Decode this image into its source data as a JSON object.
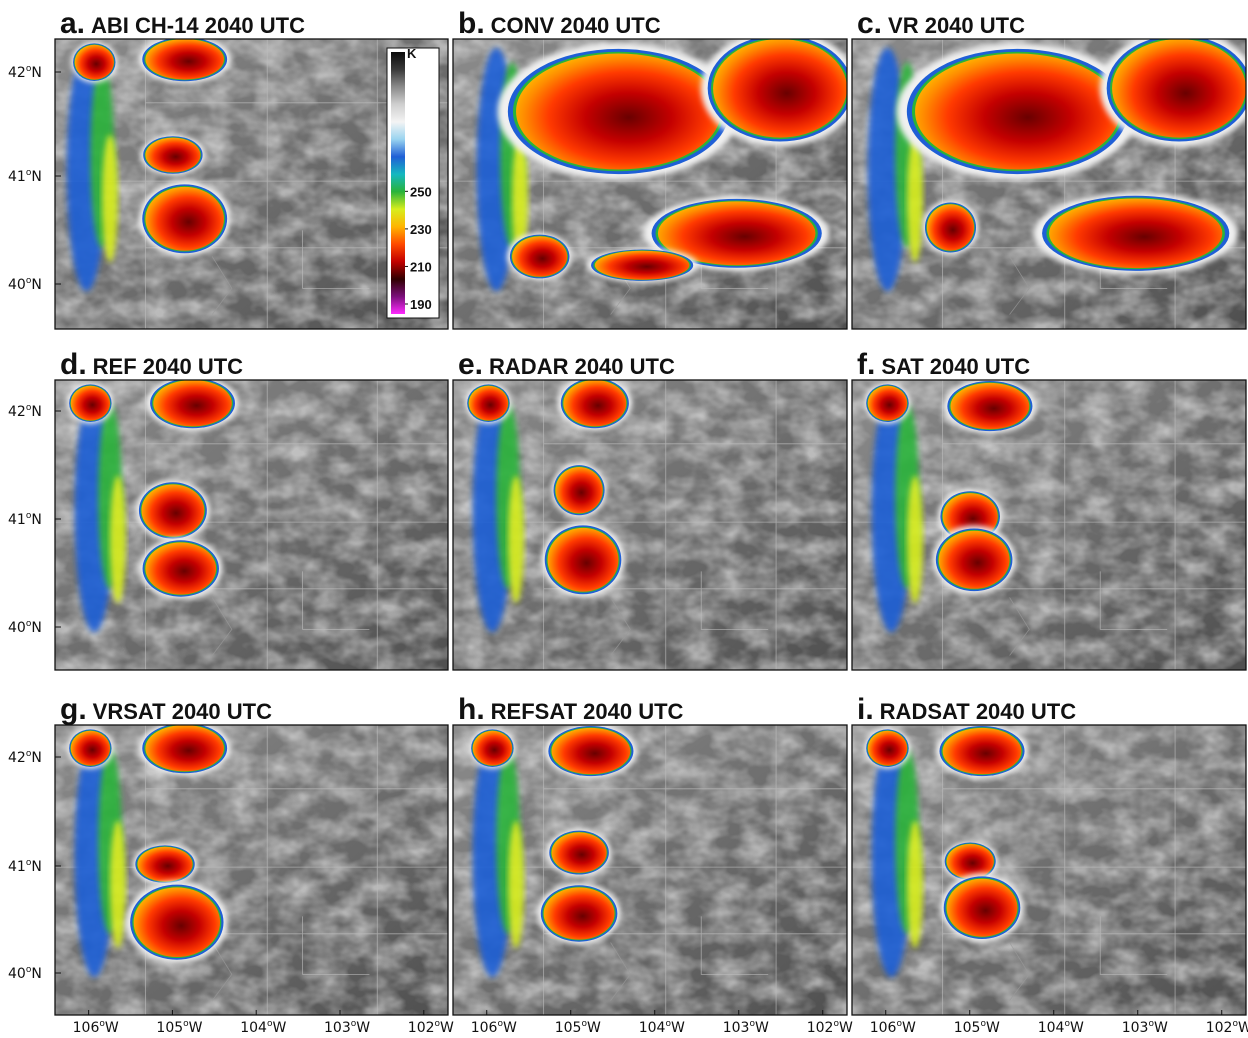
{
  "figure": {
    "panels": [
      {
        "letter": "a.",
        "title": "ABI CH-14 2040 UTC",
        "variant": "obs"
      },
      {
        "letter": "b.",
        "title": "CONV 2040 UTC",
        "variant": "conv"
      },
      {
        "letter": "c.",
        "title": "VR 2040 UTC",
        "variant": "vr"
      },
      {
        "letter": "d.",
        "title": "REF 2040 UTC",
        "variant": "ref"
      },
      {
        "letter": "e.",
        "title": "RADAR 2040 UTC",
        "variant": "radar"
      },
      {
        "letter": "f.",
        "title": "SAT 2040 UTC",
        "variant": "sat"
      },
      {
        "letter": "g.",
        "title": "VRSAT 2040 UTC",
        "variant": "vrsat"
      },
      {
        "letter": "h.",
        "title": "REFSAT 2040 UTC",
        "variant": "refsat"
      },
      {
        "letter": "i.",
        "title": "RADSAT 2040 UTC",
        "variant": "radsat"
      }
    ],
    "lat_labels": [
      "42",
      "41",
      "40"
    ],
    "lat_suffix": "N",
    "lon_labels": [
      "106",
      "105",
      "104",
      "103",
      "102"
    ],
    "lon_suffix": "W",
    "degree_symbol": "o",
    "colorbar": {
      "unit": "K",
      "ticks": [
        "250",
        "230",
        "210",
        "190"
      ],
      "stops": [
        "#0a0a0a",
        "#3a3a3a",
        "#8a8a8a",
        "#cfcfcf",
        "#f4f4f4",
        "#9ad4f0",
        "#1f5fd6",
        "#15b8c0",
        "#29b33a",
        "#d7ee1e",
        "#ffb400",
        "#ff4a00",
        "#c20000",
        "#300000",
        "#7a0f7a",
        "#ff2bff"
      ],
      "tick_values": [
        250,
        230,
        210,
        190
      ]
    }
  }
}
